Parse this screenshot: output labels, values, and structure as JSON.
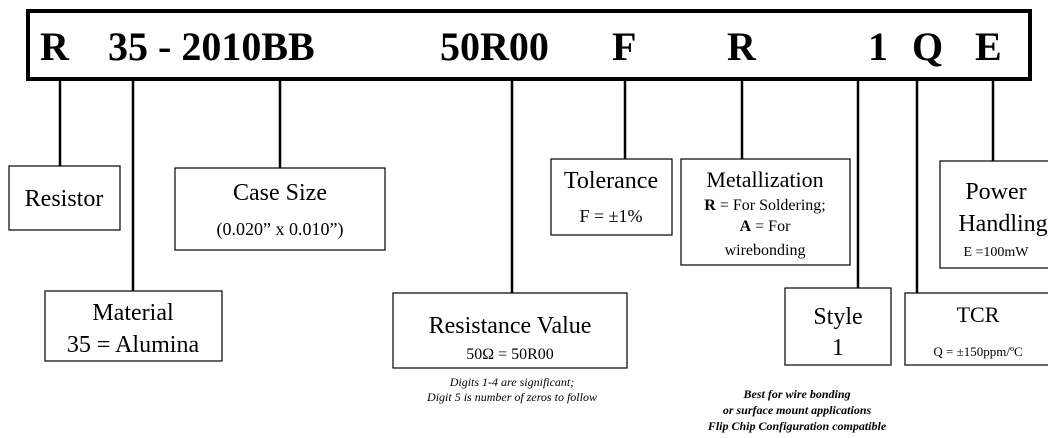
{
  "code": [
    "R",
    "35 - 2010BB",
    "50R00",
    "F",
    "R",
    "1",
    "Q",
    "E"
  ],
  "resistor": {
    "title": "Resistor"
  },
  "material": {
    "title": "Material",
    "detail": "35 = Alumina"
  },
  "case_size": {
    "title": "Case Size",
    "detail": "(0.020” x 0.010”)"
  },
  "resistance": {
    "title": "Resistance Value",
    "detail": "50Ω = 50R00",
    "notes": [
      "Digits 1-4 are significant;",
      "Digit 5 is number of zeros to follow"
    ]
  },
  "tolerance": {
    "title": "Tolerance",
    "detail": "F = ±1%"
  },
  "metallization": {
    "title": "Metallization",
    "lines": [
      {
        "key": "R",
        "text": " = For Soldering;"
      },
      {
        "key": "A",
        "text": " = For"
      }
    ],
    "last": "wirebonding"
  },
  "style": {
    "title": "Style",
    "detail": "1",
    "notes": [
      "Best for wire bonding",
      "or surface mount applications",
      "Flip Chip Configuration compatible"
    ]
  },
  "tcr": {
    "title": "TCR",
    "detail": "Q = ±150ppm/ºC"
  },
  "power": {
    "title": "Power",
    "title2": "Handling",
    "detail": "E =100mW"
  }
}
